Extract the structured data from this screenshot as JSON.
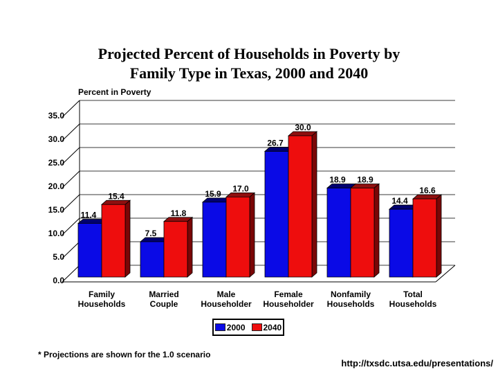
{
  "slide": {
    "title_line1": "Projected Percent of Households in Poverty by",
    "title_line2": "Family Type in Texas, 2000 and 2040",
    "footnote": "* Projections are shown for the 1.0 scenario",
    "url": "http://txsdc.utsa.edu/presentations/"
  },
  "chart_data": {
    "type": "bar",
    "title": "Projected Percent of Households in Poverty by Family Type in Texas, 2000 and 2040",
    "axis_title": "Percent in Poverty",
    "categories": [
      "Family\nHouseholds",
      "Married\nCouple",
      "Male\nHouseholder",
      "Female\nHouseholder",
      "Nonfamily\nHouseholds",
      "Total\nHouseholds"
    ],
    "series": [
      {
        "name": "2000",
        "color": "#0a0ae6",
        "dark_top": "#000070",
        "dark_side": "#000052",
        "values": [
          11.4,
          7.5,
          15.9,
          26.7,
          18.9,
          14.4
        ]
      },
      {
        "name": "2040",
        "color": "#ee0d0d",
        "dark_top": "#8f0f0f",
        "dark_side": "#7a0606",
        "values": [
          15.4,
          11.8,
          17.0,
          30.0,
          18.9,
          16.6
        ]
      }
    ],
    "yticks": [
      "35.0",
      "30.0",
      "25.0",
      "20.0",
      "15.0",
      "10.0",
      "5.0",
      "0.0"
    ],
    "ylim": [
      0,
      35
    ],
    "grid": true,
    "legend_position": "bottom",
    "style": "3d-bars"
  }
}
